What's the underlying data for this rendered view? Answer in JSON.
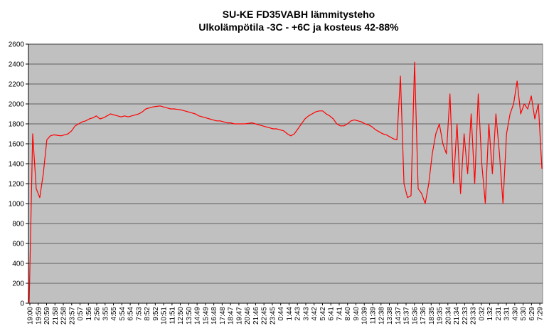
{
  "chart_data": {
    "type": "line",
    "title": "SU-KE FD35VABH lämmitysteho",
    "subtitle": "Ulkolämpötila  -3C - +6C ja kosteus 42-88%",
    "xlabel": "",
    "ylabel": "",
    "ylim": [
      0,
      2600
    ],
    "y_ticks": [
      "0",
      "200",
      "400",
      "600",
      "800",
      "1000",
      "1200",
      "1400",
      "1600",
      "1800",
      "2000",
      "2200",
      "2400",
      "2600"
    ],
    "x_tick_labels": [
      "19:00",
      "19:59",
      "20:59",
      "21:58",
      "22:58",
      "23:57",
      "0:57",
      "1:56",
      "2:56",
      "3:55",
      "4:55",
      "5:54",
      "6:54",
      "7:53",
      "8:52",
      "9:52",
      "10:51",
      "11:51",
      "12:50",
      "13:50",
      "14:49",
      "15:49",
      "16:48",
      "17:48",
      "18:47",
      "19:47",
      "20:46",
      "21:46",
      "22:45",
      "23:45",
      "0:44",
      "1:44",
      "2:43",
      "3:43",
      "4:42",
      "5:42",
      "6:41",
      "7:41",
      "8:40",
      "9:40",
      "10:39",
      "11:39",
      "12:38",
      "13:38",
      "14:37",
      "15:37",
      "16:36",
      "17:36",
      "18:35",
      "19:35",
      "20:34",
      "21:34",
      "22:33",
      "23:33",
      "0:32",
      "1:32",
      "2:31",
      "3:31",
      "4:30",
      "5:30",
      "6:29",
      "7:29"
    ],
    "grid": true,
    "legend": "none",
    "colors": {
      "plot_bg": "#c0c0c0",
      "series": "#ff0000",
      "grid": "#000000"
    },
    "series": [
      {
        "values": [
          0,
          1700,
          1150,
          1060,
          1300,
          1640,
          1680,
          1690,
          1685,
          1680,
          1690,
          1700,
          1730,
          1780,
          1800,
          1820,
          1830,
          1850,
          1860,
          1880,
          1850,
          1860,
          1880,
          1900,
          1890,
          1880,
          1870,
          1880,
          1870,
          1880,
          1890,
          1900,
          1920,
          1950,
          1960,
          1970,
          1975,
          1980,
          1970,
          1960,
          1950,
          1950,
          1945,
          1940,
          1930,
          1920,
          1910,
          1900,
          1880,
          1870,
          1860,
          1850,
          1840,
          1830,
          1830,
          1820,
          1810,
          1810,
          1800,
          1800,
          1800,
          1800,
          1805,
          1810,
          1800,
          1790,
          1780,
          1770,
          1760,
          1750,
          1750,
          1740,
          1730,
          1700,
          1680,
          1700,
          1750,
          1800,
          1850,
          1880,
          1900,
          1920,
          1930,
          1930,
          1900,
          1880,
          1850,
          1800,
          1780,
          1780,
          1800,
          1830,
          1840,
          1830,
          1820,
          1800,
          1790,
          1770,
          1740,
          1720,
          1700,
          1690,
          1670,
          1650,
          1640,
          2280,
          1200,
          1060,
          1080,
          2420,
          1150,
          1100,
          1000,
          1200,
          1500,
          1700,
          1800,
          1600,
          1500,
          2100,
          1200,
          1800,
          1100,
          1700,
          1300,
          1900,
          1200,
          2100,
          1400,
          1000,
          1800,
          1300,
          1900,
          1500,
          1000,
          1700,
          1900,
          2000,
          2230,
          1900,
          2000,
          1950,
          2080,
          1850,
          2000,
          1350
        ]
      }
    ]
  }
}
